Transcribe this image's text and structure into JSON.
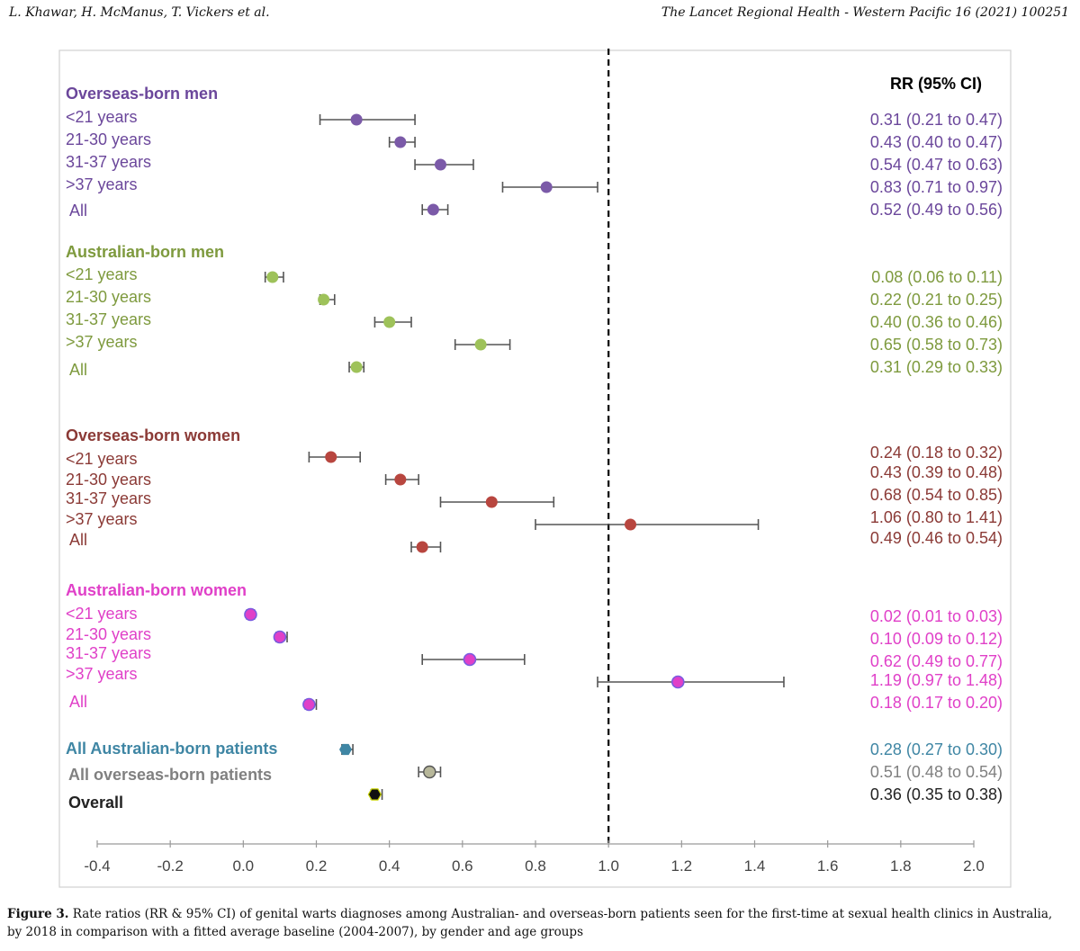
{
  "header": {
    "left": "L. Khawar, H. McManus, T. Vickers et al.",
    "right": "The Lancet Regional Health - Western Pacific 16 (2021) 100251"
  },
  "figure": {
    "caption_label": "Figure 3.",
    "caption_text": "Rate ratios (RR & 95% CI) of genital warts diagnoses among Australian- and overseas-born patients seen for the first-time at sexual health clinics in Australia, by 2018 in comparison with a fitted average baseline (2004-2007), by gender and age groups"
  },
  "colors": {
    "overseas_men": "#6b479b",
    "australian_men": "#7e9a3e",
    "overseas_women": "#8b3a36",
    "australian_women": "#e040c8",
    "all_australian": "#3f86a4",
    "all_overseas": "#808080",
    "overall": "#222222",
    "whisker": "#555555"
  },
  "chart_data": {
    "type": "forest",
    "xlim": [
      -0.4,
      2.0
    ],
    "xticks": [
      -0.4,
      -0.2,
      0.0,
      0.2,
      0.4,
      0.6,
      0.8,
      1.0,
      1.2,
      1.4,
      1.6,
      1.8,
      2.0
    ],
    "xtick_labels": [
      "-0.4",
      "-0.2",
      "0.0",
      "0.2",
      "0.4",
      "0.6",
      "0.8",
      "1.0",
      "1.2",
      "1.4",
      "1.6",
      "1.8",
      "2.0"
    ],
    "reference_line": 1.0,
    "rr_header": "RR (95% CI)",
    "groups": [
      {
        "name": "Overseas-born men",
        "color_key": "overseas_men",
        "rows": [
          {
            "label": "<21 years",
            "rr": 0.31,
            "lo": 0.21,
            "hi": 0.47,
            "text": "0.31 (0.21 to 0.47)"
          },
          {
            "label": "21-30 years",
            "rr": 0.43,
            "lo": 0.4,
            "hi": 0.47,
            "text": "0.43 (0.40 to 0.47)"
          },
          {
            "label": "31-37 years",
            "rr": 0.54,
            "lo": 0.47,
            "hi": 0.63,
            "text": "0.54 (0.47 to 0.63)"
          },
          {
            "label": ">37 years",
            "rr": 0.83,
            "lo": 0.71,
            "hi": 0.97,
            "text": "0.83 (0.71 to 0.97)"
          },
          {
            "label": "All",
            "rr": 0.52,
            "lo": 0.49,
            "hi": 0.56,
            "text": "0.52 (0.49 to 0.56)"
          }
        ]
      },
      {
        "name": "Australian-born men",
        "color_key": "australian_men",
        "rows": [
          {
            "label": "<21 years",
            "rr": 0.08,
            "lo": 0.06,
            "hi": 0.11,
            "text": "0.08 (0.06 to 0.11)"
          },
          {
            "label": "21-30 years",
            "rr": 0.22,
            "lo": 0.21,
            "hi": 0.25,
            "text": "0.22 (0.21 to 0.25)"
          },
          {
            "label": "31-37 years",
            "rr": 0.4,
            "lo": 0.36,
            "hi": 0.46,
            "text": "0.40 (0.36 to 0.46)"
          },
          {
            "label": ">37 years",
            "rr": 0.65,
            "lo": 0.58,
            "hi": 0.73,
            "text": "0.65 (0.58 to 0.73)"
          },
          {
            "label": "All",
            "rr": 0.31,
            "lo": 0.29,
            "hi": 0.33,
            "text": "0.31 (0.29 to 0.33)"
          }
        ]
      },
      {
        "name": "Overseas-born women",
        "color_key": "overseas_women",
        "rows": [
          {
            "label": "<21 years",
            "rr": 0.24,
            "lo": 0.18,
            "hi": 0.32,
            "text": "0.24 (0.18 to 0.32)"
          },
          {
            "label": "21-30 years",
            "rr": 0.43,
            "lo": 0.39,
            "hi": 0.48,
            "text": "0.43 (0.39 to 0.48)"
          },
          {
            "label": "31-37 years",
            "rr": 0.68,
            "lo": 0.54,
            "hi": 0.85,
            "text": "0.68 (0.54 to 0.85)"
          },
          {
            "label": ">37 years",
            "rr": 1.06,
            "lo": 0.8,
            "hi": 1.41,
            "text": "1.06 (0.80 to 1.41)"
          },
          {
            "label": "All",
            "rr": 0.49,
            "lo": 0.46,
            "hi": 0.54,
            "text": "0.49 (0.46 to 0.54)"
          }
        ]
      },
      {
        "name": "Australian-born women",
        "color_key": "australian_women",
        "rows": [
          {
            "label": "<21 years",
            "rr": 0.02,
            "lo": 0.01,
            "hi": 0.03,
            "text": "0.02 (0.01 to 0.03)"
          },
          {
            "label": "21-30 years",
            "rr": 0.1,
            "lo": 0.09,
            "hi": 0.12,
            "text": "0.10 (0.09 to 0.12)"
          },
          {
            "label": "31-37 years",
            "rr": 0.62,
            "lo": 0.49,
            "hi": 0.77,
            "text": "0.62 (0.49 to 0.77)"
          },
          {
            "label": ">37 years",
            "rr": 1.19,
            "lo": 0.97,
            "hi": 1.48,
            "text": "1.19 (0.97 to 1.48)"
          },
          {
            "label": "All",
            "rr": 0.18,
            "lo": 0.17,
            "hi": 0.2,
            "text": "0.18 (0.17 to 0.20)"
          }
        ]
      }
    ],
    "summary": [
      {
        "label": "All Australian-born patients",
        "color_key": "all_australian",
        "rr": 0.28,
        "lo": 0.27,
        "hi": 0.3,
        "text": "0.28 (0.27 to 0.30)",
        "marker": "hexagon"
      },
      {
        "label": "All overseas-born patients",
        "color_key": "all_overseas",
        "rr": 0.51,
        "lo": 0.48,
        "hi": 0.54,
        "text": "0.51 (0.48 to 0.54)",
        "marker": "circle"
      },
      {
        "label": "Overall",
        "color_key": "overall",
        "rr": 0.36,
        "lo": 0.35,
        "hi": 0.38,
        "text": "0.36 (0.35 to 0.38)",
        "marker": "hexagon"
      }
    ]
  }
}
